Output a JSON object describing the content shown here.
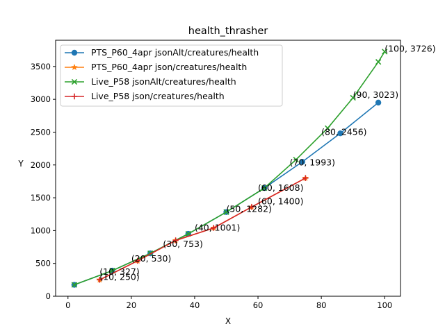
{
  "chart_data": {
    "type": "line",
    "title": "health_thrasher",
    "xlabel": "X",
    "ylabel": "Y",
    "xlim": [
      -3.9,
      105
    ],
    "ylim": [
      0,
      3900
    ],
    "xticks": [
      0,
      20,
      40,
      60,
      80,
      100
    ],
    "yticks": [
      0,
      500,
      1000,
      1500,
      2000,
      2500,
      3000,
      3500
    ],
    "grid": false,
    "legend_position": "top-left",
    "series": [
      {
        "name": "PTS_P60_4apr jsonAlt/creatures/health",
        "color": "#1f77b4",
        "marker": "circle",
        "x": [
          2,
          14,
          26,
          38,
          50,
          62,
          74,
          86,
          98
        ],
        "y": [
          174,
          390,
          653,
          951,
          1282,
          1648,
          2048,
          2482,
          2950
        ]
      },
      {
        "name": "PTS_P60_4apr json/creatures/health",
        "color": "#ff7f0e",
        "marker": "star",
        "x": [
          10,
          22,
          34,
          46,
          58,
          75
        ],
        "y": [
          250,
          540,
          850,
          1040,
          1360,
          1800
        ]
      },
      {
        "name": "Live_P58 jsonAlt/creatures/health",
        "color": "#2ca02c",
        "marker": "x",
        "x": [
          2,
          14,
          26,
          38,
          50,
          62,
          72,
          82,
          90,
          98,
          100
        ],
        "y": [
          174,
          390,
          653,
          951,
          1282,
          1648,
          2080,
          2560,
          3023,
          3570,
          3726
        ]
      },
      {
        "name": "Live_P58 json/creatures/health",
        "color": "#d62728",
        "marker": "plus",
        "x": [
          10,
          22,
          34,
          46,
          58,
          75
        ],
        "y": [
          250,
          540,
          850,
          1040,
          1360,
          1800
        ]
      }
    ],
    "annotations": [
      {
        "x": 10,
        "y": 327,
        "text": "(10, 327)"
      },
      {
        "x": 10,
        "y": 250,
        "text": "(10, 250)"
      },
      {
        "x": 20,
        "y": 530,
        "text": "(20, 530)"
      },
      {
        "x": 30,
        "y": 753,
        "text": "(30, 753)"
      },
      {
        "x": 40,
        "y": 1001,
        "text": "(40, 1001)"
      },
      {
        "x": 50,
        "y": 1282,
        "text": "(50, 1282)"
      },
      {
        "x": 60,
        "y": 1608,
        "text": "(60, 1608)"
      },
      {
        "x": 60,
        "y": 1400,
        "text": "(60, 1400)"
      },
      {
        "x": 70,
        "y": 1993,
        "text": "(70, 1993)"
      },
      {
        "x": 80,
        "y": 2456,
        "text": "(80, 2456)"
      },
      {
        "x": 90,
        "y": 3023,
        "text": "(90, 3023)"
      },
      {
        "x": 100,
        "y": 3726,
        "text": "(100, 3726)"
      }
    ]
  }
}
